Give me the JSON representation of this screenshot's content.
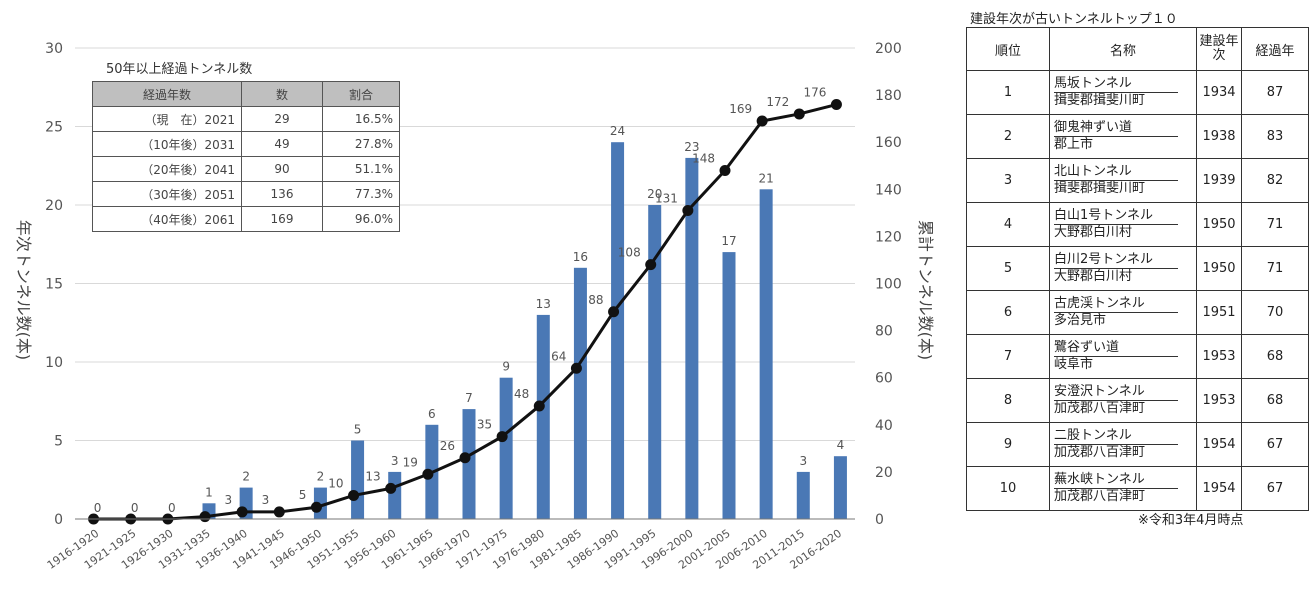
{
  "chart_data": {
    "type": "bar",
    "ylabel": "年次トンネル数(本)",
    "y2label": "累計トンネル数(本)",
    "ylim": [
      0,
      30
    ],
    "y2lim": [
      0,
      200
    ],
    "yticks": [
      "0",
      "5",
      "10",
      "15",
      "20",
      "25",
      "30"
    ],
    "y2ticks": [
      "0",
      "20",
      "40",
      "60",
      "80",
      "100",
      "120",
      "140",
      "160",
      "180",
      "200"
    ],
    "categories": [
      "1916-1920",
      "1921-1925",
      "1926-1930",
      "1931-1935",
      "1936-1940",
      "1941-1945",
      "1946-1950",
      "1951-1955",
      "1956-1960",
      "1961-1965",
      "1966-1970",
      "1971-1975",
      "1976-1980",
      "1981-1985",
      "1986-1990",
      "1991-1995",
      "1996-2000",
      "2001-2005",
      "2006-2010",
      "2011-2015",
      "2016-2020"
    ],
    "series": [
      {
        "type": "bar",
        "axis": "left",
        "color": "#4a78b5",
        "values": [
          0,
          0,
          0,
          1,
          2,
          0,
          2,
          5,
          3,
          6,
          7,
          9,
          13,
          16,
          24,
          20,
          23,
          17,
          21,
          3,
          4
        ],
        "labels": [
          "0",
          "0",
          "0",
          "1",
          "2",
          "",
          "2",
          "5",
          "3",
          "6",
          "7",
          "9",
          "13",
          "16",
          "24",
          "20",
          "23",
          "17",
          "21",
          "3",
          "4"
        ]
      },
      {
        "type": "line",
        "axis": "right",
        "color": "#111111",
        "values": [
          0,
          0,
          0,
          1,
          3,
          3,
          5,
          10,
          13,
          19,
          26,
          35,
          48,
          64,
          88,
          108,
          131,
          148,
          169,
          172,
          176
        ],
        "labels": [
          "",
          "",
          "",
          "",
          "3",
          "3",
          "5",
          "10",
          "13",
          "19",
          "26",
          "35",
          "48",
          "64",
          "88",
          "108",
          "131",
          "148",
          "169",
          "172",
          "176"
        ]
      }
    ],
    "inset_table": {
      "title": "50年以上経過トンネル数",
      "headers": [
        "経過年数",
        "数",
        "割合"
      ],
      "rows": [
        [
          "（現　在）2021",
          "29",
          "16.5%"
        ],
        [
          "（10年後）2031",
          "49",
          "27.8%"
        ],
        [
          "（20年後）2041",
          "90",
          "51.1%"
        ],
        [
          "（30年後）2051",
          "136",
          "77.3%"
        ],
        [
          "（40年後）2061",
          "169",
          "96.0%"
        ]
      ]
    }
  },
  "ranking": {
    "title": "建設年次が古いトンネルトップ１０",
    "headers": [
      "順位",
      "名称",
      "建設年次",
      "経過年"
    ],
    "rows": [
      {
        "rank": "1",
        "name": "馬坂トンネル",
        "place": "揖斐郡揖斐川町",
        "year": "1934",
        "age": "87"
      },
      {
        "rank": "2",
        "name": "御鬼神ずい道",
        "place": "郡上市",
        "year": "1938",
        "age": "83"
      },
      {
        "rank": "3",
        "name": "北山トンネル",
        "place": "揖斐郡揖斐川町",
        "year": "1939",
        "age": "82"
      },
      {
        "rank": "4",
        "name": "白山1号トンネル",
        "place": "大野郡白川村",
        "year": "1950",
        "age": "71"
      },
      {
        "rank": "5",
        "name": "白川2号トンネル",
        "place": "大野郡白川村",
        "year": "1950",
        "age": "71"
      },
      {
        "rank": "6",
        "name": "古虎渓トンネル",
        "place": "多治見市",
        "year": "1951",
        "age": "70"
      },
      {
        "rank": "7",
        "name": "鷺谷ずい道",
        "place": "岐阜市",
        "year": "1953",
        "age": "68"
      },
      {
        "rank": "8",
        "name": "安澄沢トンネル",
        "place": "加茂郡八百津町",
        "year": "1953",
        "age": "68"
      },
      {
        "rank": "9",
        "name": "二股トンネル",
        "place": "加茂郡八百津町",
        "year": "1954",
        "age": "67"
      },
      {
        "rank": "10",
        "name": "蕪水峡トンネル",
        "place": "加茂郡八百津町",
        "year": "1954",
        "age": "67"
      }
    ],
    "note": "※令和3年4月時点"
  }
}
